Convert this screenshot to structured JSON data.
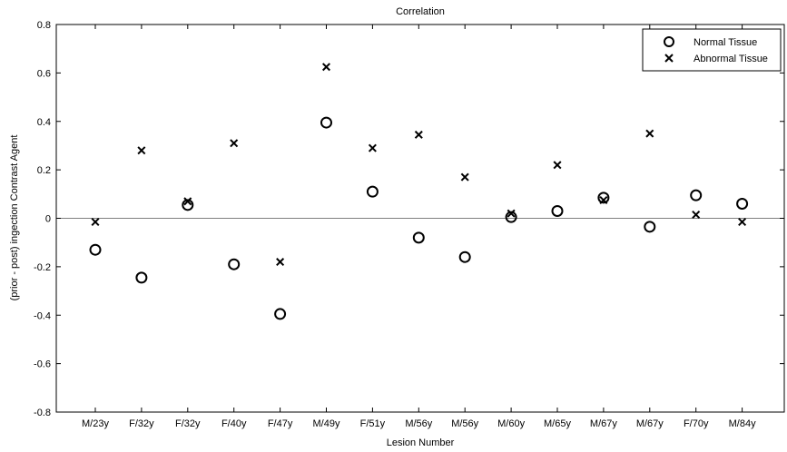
{
  "chart_data": {
    "type": "scatter",
    "title": "Correlation",
    "xlabel": "Lesion Number",
    "ylabel": "(prior - post) ingection Contrast Agent",
    "categories": [
      "M/23y",
      "F/32y",
      "F/32y",
      "F/40y",
      "F/47y",
      "M/49y",
      "F/51y",
      "M/56y",
      "M/56y",
      "M/60y",
      "M/65y",
      "M/67y",
      "M/67y",
      "F/70y",
      "M/84y"
    ],
    "ylim": [
      -0.8,
      0.8
    ],
    "yticks": [
      "0.8",
      "0.6",
      "0.4",
      "0.2",
      "0",
      "-0.2",
      "-0.4",
      "-0.6",
      "-0.8"
    ],
    "zero_line": true,
    "grid": false,
    "legend_position": "top-right",
    "series": [
      {
        "name": "Normal Tissue",
        "marker": "circle",
        "color": "#000000",
        "values": [
          -0.13,
          -0.245,
          0.055,
          -0.19,
          -0.395,
          0.395,
          0.11,
          -0.08,
          -0.16,
          0.005,
          0.03,
          0.085,
          -0.035,
          0.095,
          0.06
        ]
      },
      {
        "name": "Abnormal Tissue",
        "marker": "x",
        "color": "#000000",
        "values": [
          -0.015,
          0.28,
          0.07,
          0.31,
          -0.18,
          0.625,
          0.29,
          0.345,
          0.17,
          0.02,
          0.22,
          0.075,
          0.35,
          0.015,
          -0.015
        ]
      }
    ]
  }
}
